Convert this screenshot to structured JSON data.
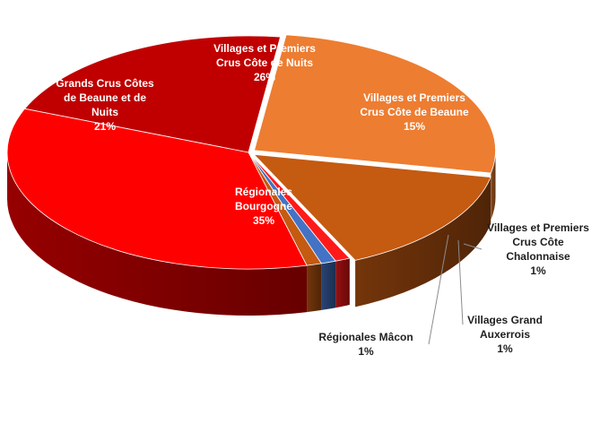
{
  "chart_data": {
    "type": "pie",
    "title": "",
    "slices": [
      {
        "label": "Grands Crus Côtes de Beaune et de Nuits",
        "value": 21,
        "value_label": "21%",
        "color": "#c00000",
        "label_lines": [
          "Grands Crus Côtes",
          "de Beaune et de",
          "Nuits"
        ]
      },
      {
        "label": "Villages et Premiers Crus Côte de Nuits",
        "value": 26,
        "value_label": "26%",
        "color": "#ed7d31",
        "label_lines": [
          "Villages et Premiers",
          "Crus Côte de Nuits"
        ]
      },
      {
        "label": "Villages et Premiers Crus Côte de Beaune",
        "value": 15,
        "value_label": "15%",
        "color": "#c55a11",
        "label_lines": [
          "Villages et Premiers",
          "Crus Côte de Beaune"
        ]
      },
      {
        "label": "Villages et Premiers Crus Côte Chalonnaise",
        "value": 1,
        "value_label": "1%",
        "color": "#ff1a1a",
        "label_lines": [
          "Villages et Premiers",
          "Crus Côte",
          "Chalonnaise"
        ]
      },
      {
        "label": "Villages Grand Auxerrois",
        "value": 1,
        "value_label": "1%",
        "color": "#4472c4",
        "label_lines": [
          "Villages Grand",
          "Auxerrois"
        ]
      },
      {
        "label": "Régionales Mâcon",
        "value": 1,
        "value_label": "1%",
        "color": "#c55a11",
        "label_lines": [
          "Régionales Mâcon"
        ]
      },
      {
        "label": "Régionales Bourgogne",
        "value": 35,
        "value_label": "35%",
        "color": "#ff0000",
        "label_lines": [
          "Régionales",
          "Bourgogne"
        ]
      }
    ],
    "legend": "none",
    "style": "3d-exploded-pie"
  }
}
